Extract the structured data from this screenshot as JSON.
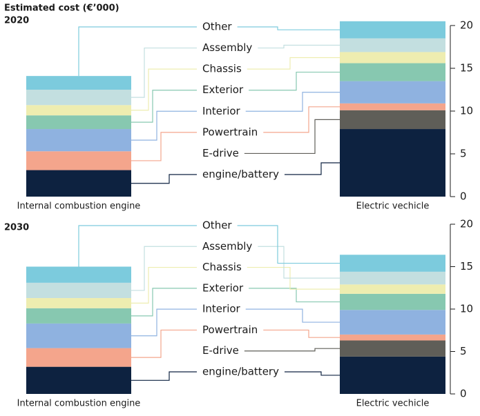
{
  "title": "Estimated cost (€’000)",
  "chart_data": [
    {
      "type": "bar",
      "stacked": true,
      "title": "2020",
      "categories": [
        "Internal combustion engine",
        "Electric vechicle"
      ],
      "series": [
        {
          "name": "engine/battery",
          "color": "#0d2240",
          "values": [
            3.1,
            7.9
          ]
        },
        {
          "name": "E-drive",
          "color": "#5f5e58",
          "values": [
            0,
            2.2
          ]
        },
        {
          "name": "Powertrain",
          "color": "#f4a58c",
          "values": [
            2.2,
            0.8
          ]
        },
        {
          "name": "Interior",
          "color": "#8fb2e0",
          "values": [
            2.6,
            2.6
          ]
        },
        {
          "name": "Exterior",
          "color": "#87c8b0",
          "values": [
            1.6,
            2.1
          ]
        },
        {
          "name": "Chassis",
          "color": "#eeedb0",
          "values": [
            1.2,
            1.3
          ]
        },
        {
          "name": "Assembly",
          "color": "#c3dfe0",
          "values": [
            1.8,
            1.6
          ]
        },
        {
          "name": "Other",
          "color": "#7ccbdd",
          "values": [
            1.6,
            2.0
          ]
        }
      ],
      "ylim": [
        0,
        20
      ],
      "yticks": [
        0,
        5,
        10,
        15,
        20
      ]
    },
    {
      "type": "bar",
      "stacked": true,
      "title": "2030",
      "categories": [
        "Internal combustion engine",
        "Electric vechicle"
      ],
      "series": [
        {
          "name": "engine/battery",
          "color": "#0d2240",
          "values": [
            3.2,
            4.4
          ]
        },
        {
          "name": "E-drive",
          "color": "#5f5e58",
          "values": [
            0,
            1.9
          ]
        },
        {
          "name": "Powertrain",
          "color": "#f4a58c",
          "values": [
            2.2,
            0.7
          ]
        },
        {
          "name": "Interior",
          "color": "#8fb2e0",
          "values": [
            2.9,
            2.9
          ]
        },
        {
          "name": "Exterior",
          "color": "#87c8b0",
          "values": [
            1.8,
            1.9
          ]
        },
        {
          "name": "Chassis",
          "color": "#eeedb0",
          "values": [
            1.2,
            1.1
          ]
        },
        {
          "name": "Assembly",
          "color": "#c3dfe0",
          "values": [
            1.8,
            1.5
          ]
        },
        {
          "name": "Other",
          "color": "#7ccbdd",
          "values": [
            1.9,
            2.0
          ]
        }
      ],
      "ylim": [
        0,
        20
      ],
      "yticks": [
        0,
        5,
        10,
        15,
        20
      ]
    }
  ]
}
